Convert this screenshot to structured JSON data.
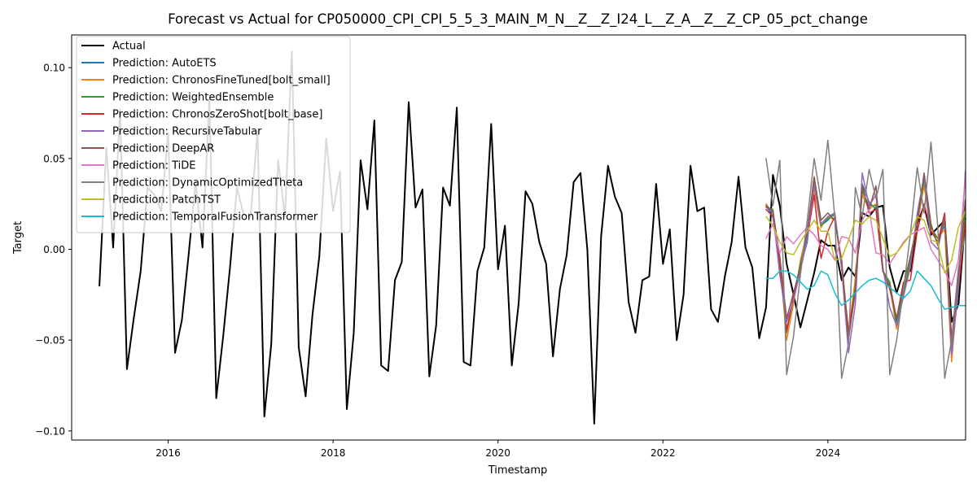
{
  "chart_data": {
    "type": "line",
    "title": "Forecast vs Actual for CP050000_CPI_CPI_5_5_3_MAIN_M_N__Z__Z_I24_L__Z_A__Z__Z_CP_05_pct_change",
    "xlabel": "Timestamp",
    "ylabel": "Target",
    "xlim": [
      2014.83,
      2025.67
    ],
    "ylim": [
      -0.105,
      0.118
    ],
    "xticks": [
      {
        "value": 2016,
        "label": "2016"
      },
      {
        "value": 2018,
        "label": "2018"
      },
      {
        "value": 2020,
        "label": "2020"
      },
      {
        "value": 2022,
        "label": "2022"
      },
      {
        "value": 2024,
        "label": "2024"
      }
    ],
    "yticks": [
      {
        "value": -0.1,
        "label": "−0.10"
      },
      {
        "value": -0.05,
        "label": "−0.05"
      },
      {
        "value": 0.0,
        "label": "0.00"
      },
      {
        "value": 0.05,
        "label": "0.05"
      },
      {
        "value": 0.1,
        "label": "0.10"
      }
    ],
    "grid": false,
    "legend_position": "top-left",
    "actual": {
      "name": "Actual",
      "color": "#000000",
      "x_start": 2015.167,
      "step": 0.0833333,
      "values": [
        -0.02,
        0.056,
        0.001,
        0.077,
        -0.066,
        -0.038,
        -0.012,
        0.034,
        0.03,
        0.021,
        0.064,
        -0.057,
        -0.039,
        -0.002,
        0.037,
        0.001,
        0.083,
        -0.082,
        -0.048,
        -0.01,
        0.034,
        0.019,
        0.018,
        0.065,
        -0.092,
        -0.052,
        0.049,
        0.018,
        0.109,
        -0.054,
        -0.081,
        -0.036,
        -0.004,
        0.061,
        0.021,
        0.043,
        -0.088,
        -0.046,
        0.049,
        0.022,
        0.071,
        -0.064,
        -0.067,
        -0.017,
        -0.007,
        0.081,
        0.023,
        0.033,
        -0.07,
        -0.042,
        0.034,
        0.024,
        0.078,
        -0.062,
        -0.064,
        -0.012,
        0.001,
        0.069,
        -0.011,
        0.013,
        -0.064,
        -0.03,
        0.032,
        0.025,
        0.004,
        -0.008,
        -0.059,
        -0.022,
        -0.003,
        0.037,
        0.042,
        0.0,
        -0.096,
        0.007,
        0.046,
        0.029,
        0.02,
        -0.029,
        -0.046,
        -0.017,
        -0.015,
        0.036,
        -0.008,
        0.011,
        -0.05,
        -0.025,
        0.046,
        0.021,
        0.023,
        -0.033,
        -0.04,
        -0.015,
        0.004,
        0.04,
        0.001,
        -0.01,
        -0.049,
        -0.032,
        0.041,
        0.024,
        -0.008,
        -0.025,
        -0.043,
        -0.028,
        -0.013,
        0.005,
        0.002,
        0.002,
        -0.017,
        -0.01,
        -0.015,
        0.02,
        0.018,
        0.023,
        0.024,
        -0.01,
        -0.024,
        -0.012,
        -0.012,
        0.014,
        0.024,
        0.008,
        0.012,
        0.016,
        -0.04,
        -0.03,
        0.017
      ]
    },
    "forecast": {
      "x_start": 2023.25,
      "step": 0.0833333,
      "series": [
        {
          "name": "Prediction: AutoETS",
          "color": "#1f77b4",
          "values": [
            0.024,
            0.018,
            -0.01,
            -0.044,
            -0.028,
            -0.01,
            0.004,
            0.038,
            0.013,
            0.016,
            0.02,
            -0.01,
            -0.048,
            -0.024,
            0.036,
            0.026,
            0.022,
            -0.012,
            -0.018,
            -0.04,
            -0.022,
            -0.008,
            0.016,
            0.04,
            0.01,
            0.006,
            0.013,
            -0.053,
            -0.017,
            0.027
          ]
        },
        {
          "name": "Prediction: ChronosFineTuned[bolt_small]",
          "color": "#ff7f0e",
          "values": [
            0.025,
            0.02,
            -0.006,
            -0.05,
            -0.03,
            -0.006,
            0.01,
            0.033,
            0.012,
            0.018,
            0.016,
            -0.006,
            -0.046,
            -0.016,
            0.03,
            0.022,
            0.025,
            -0.012,
            -0.02,
            -0.044,
            -0.024,
            -0.006,
            0.014,
            0.035,
            0.01,
            0.006,
            0.011,
            -0.062,
            -0.018,
            0.016
          ]
        },
        {
          "name": "Prediction: WeightedEnsemble",
          "color": "#2ca02c",
          "values": [
            0.023,
            0.022,
            -0.008,
            -0.046,
            -0.026,
            -0.008,
            0.008,
            0.036,
            0.013,
            0.017,
            0.019,
            -0.008,
            -0.047,
            -0.02,
            0.032,
            0.024,
            0.024,
            -0.012,
            -0.018,
            -0.042,
            -0.024,
            -0.007,
            0.015,
            0.038,
            0.012,
            0.006,
            0.015,
            -0.056,
            -0.016,
            0.022
          ]
        },
        {
          "name": "Prediction: ChronosZeroShot[bolt_base]",
          "color": "#d62728",
          "values": [
            0.022,
            0.018,
            -0.008,
            -0.045,
            -0.026,
            -0.01,
            0.006,
            0.03,
            -0.005,
            0.01,
            0.018,
            -0.01,
            -0.045,
            -0.022,
            0.035,
            0.02,
            0.022,
            -0.012,
            -0.022,
            -0.038,
            -0.018,
            -0.017,
            0.01,
            0.025,
            0.01,
            0.004,
            0.02,
            -0.05,
            -0.022,
            0.015
          ]
        },
        {
          "name": "Prediction: RecursiveTabular",
          "color": "#9467bd",
          "values": [
            0.024,
            0.02,
            -0.014,
            -0.04,
            -0.028,
            -0.012,
            0.006,
            0.036,
            0.014,
            0.018,
            0.02,
            -0.01,
            -0.057,
            -0.03,
            0.042,
            0.024,
            0.03,
            -0.01,
            -0.032,
            -0.042,
            -0.026,
            -0.01,
            0.02,
            0.04,
            0.004,
            0.0,
            0.018,
            -0.058,
            -0.022,
            0.043
          ]
        },
        {
          "name": "Prediction: DeepAR",
          "color": "#8c564b",
          "values": [
            0.024,
            0.021,
            -0.004,
            -0.038,
            -0.024,
            -0.01,
            0.01,
            0.04,
            0.016,
            0.02,
            0.016,
            -0.006,
            -0.05,
            -0.022,
            0.034,
            0.022,
            0.035,
            -0.012,
            -0.02,
            -0.038,
            -0.02,
            -0.004,
            0.014,
            0.042,
            0.014,
            0.002,
            0.018,
            -0.05,
            -0.014,
            0.027
          ]
        },
        {
          "name": "Prediction: TiDE",
          "color": "#e377c2",
          "values": [
            0.006,
            0.014,
            -0.002,
            0.007,
            0.003,
            0.008,
            0.012,
            0.008,
            0.002,
            0.0,
            -0.006,
            0.007,
            0.006,
            -0.002,
            0.016,
            0.022,
            -0.002,
            -0.003,
            -0.008,
            -0.002,
            0.004,
            0.008,
            0.01,
            0.012,
            0.0,
            -0.006,
            -0.012,
            -0.02,
            -0.006,
            0.04
          ]
        },
        {
          "name": "Prediction: DynamicOptimizedTheta",
          "color": "#7f7f7f",
          "values": [
            0.05,
            0.024,
            0.049,
            -0.069,
            -0.048,
            -0.014,
            0.016,
            0.05,
            0.027,
            0.06,
            0.018,
            -0.071,
            -0.052,
            0.034,
            0.018,
            0.044,
            0.028,
            0.044,
            -0.069,
            -0.05,
            -0.022,
            0.008,
            0.045,
            0.02,
            0.059,
            0.012,
            -0.071,
            -0.05,
            -0.01,
            0.008
          ]
        },
        {
          "name": "Prediction: PatchTST",
          "color": "#bcbd22",
          "values": [
            0.018,
            0.013,
            0.004,
            -0.002,
            -0.003,
            0.004,
            0.01,
            0.016,
            0.01,
            0.01,
            -0.006,
            -0.005,
            0.005,
            0.016,
            0.014,
            0.018,
            0.016,
            0.006,
            -0.004,
            -0.002,
            0.003,
            0.008,
            0.018,
            0.016,
            0.005,
            0.004,
            -0.013,
            -0.006,
            0.012,
            0.021
          ]
        },
        {
          "name": "Prediction: TemporalFusionTransformer",
          "color": "#17becf",
          "values": [
            -0.016,
            -0.016,
            -0.012,
            -0.012,
            -0.014,
            -0.018,
            -0.022,
            -0.02,
            -0.012,
            -0.014,
            -0.024,
            -0.031,
            -0.028,
            -0.024,
            -0.02,
            -0.017,
            -0.016,
            -0.018,
            -0.021,
            -0.024,
            -0.027,
            -0.023,
            -0.012,
            -0.016,
            -0.02,
            -0.027,
            -0.033,
            -0.032,
            -0.031,
            -0.031
          ]
        }
      ]
    }
  }
}
